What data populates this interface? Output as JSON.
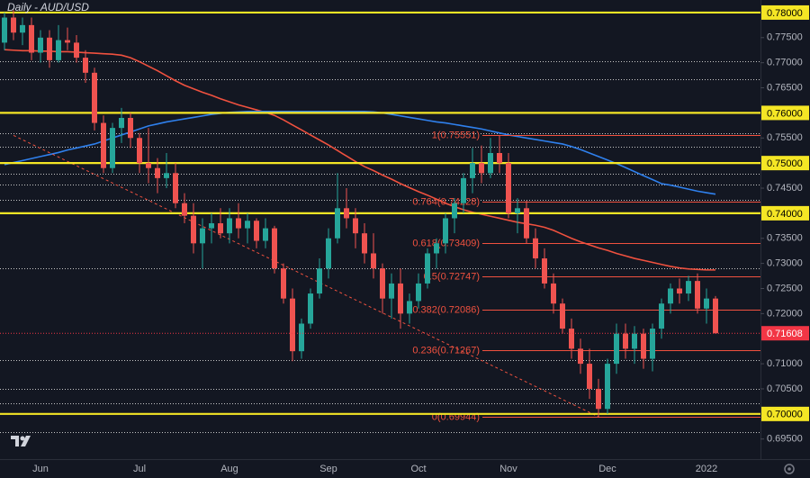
{
  "chart_data": {
    "type": "candlestick",
    "title": "Daily - AUD/USD",
    "up_color": "#26a69a",
    "down_color": "#ef5350",
    "categories": [
      null,
      null,
      null,
      null,
      "Jun",
      null,
      null,
      null,
      null,
      null,
      null,
      null,
      null,
      null,
      null,
      "Jul",
      null,
      null,
      null,
      null,
      null,
      null,
      null,
      null,
      null,
      "Aug",
      null,
      null,
      null,
      null,
      null,
      null,
      null,
      null,
      null,
      null,
      "Sep",
      null,
      null,
      null,
      null,
      null,
      null,
      null,
      null,
      null,
      "Oct",
      null,
      null,
      null,
      null,
      null,
      null,
      null,
      null,
      null,
      "Nov",
      null,
      null,
      null,
      null,
      null,
      null,
      null,
      null,
      null,
      null,
      "Dec",
      null,
      null,
      null,
      null,
      null,
      null,
      null,
      null,
      null,
      null,
      "2022",
      null
    ],
    "ohlc": [
      [
        0.774,
        0.78,
        0.7725,
        0.779
      ],
      [
        0.779,
        0.7805,
        0.7745,
        0.776
      ],
      [
        0.776,
        0.779,
        0.7735,
        0.7775
      ],
      [
        0.7775,
        0.779,
        0.7705,
        0.772
      ],
      [
        0.772,
        0.7765,
        0.77,
        0.775
      ],
      [
        0.775,
        0.7765,
        0.769,
        0.7705
      ],
      [
        0.7705,
        0.7775,
        0.77,
        0.7745
      ],
      [
        0.7745,
        0.777,
        0.7725,
        0.774
      ],
      [
        0.774,
        0.7755,
        0.77,
        0.771
      ],
      [
        0.771,
        0.7725,
        0.766,
        0.768
      ],
      [
        0.768,
        0.769,
        0.7565,
        0.758
      ],
      [
        0.758,
        0.7595,
        0.748,
        0.749
      ],
      [
        0.749,
        0.758,
        0.748,
        0.757
      ],
      [
        0.757,
        0.761,
        0.754,
        0.759
      ],
      [
        0.759,
        0.76,
        0.753,
        0.755
      ],
      [
        0.755,
        0.756,
        0.748,
        0.75
      ],
      [
        0.75,
        0.757,
        0.746,
        0.749
      ],
      [
        0.749,
        0.751,
        0.744,
        0.747
      ],
      [
        0.747,
        0.752,
        0.745,
        0.748
      ],
      [
        0.748,
        0.75,
        0.741,
        0.742
      ],
      [
        0.742,
        0.744,
        0.738,
        0.7395
      ],
      [
        0.7395,
        0.742,
        0.732,
        0.734
      ],
      [
        0.734,
        0.739,
        0.729,
        0.737
      ],
      [
        0.737,
        0.74,
        0.734,
        0.738
      ],
      [
        0.738,
        0.741,
        0.735,
        0.736
      ],
      [
        0.736,
        0.741,
        0.734,
        0.739
      ],
      [
        0.739,
        0.742,
        0.735,
        0.737
      ],
      [
        0.737,
        0.74,
        0.734,
        0.7385
      ],
      [
        0.7385,
        0.739,
        0.733,
        0.7345
      ],
      [
        0.7345,
        0.739,
        0.733,
        0.737
      ],
      [
        0.737,
        0.7375,
        0.728,
        0.729
      ],
      [
        0.729,
        0.73,
        0.722,
        0.723
      ],
      [
        0.723,
        0.725,
        0.7105,
        0.7125
      ],
      [
        0.7125,
        0.719,
        0.711,
        0.718
      ],
      [
        0.718,
        0.725,
        0.717,
        0.724
      ],
      [
        0.724,
        0.731,
        0.723,
        0.729
      ],
      [
        0.729,
        0.737,
        0.727,
        0.735
      ],
      [
        0.735,
        0.748,
        0.734,
        0.741
      ],
      [
        0.741,
        0.745,
        0.737,
        0.739
      ],
      [
        0.739,
        0.741,
        0.733,
        0.736
      ],
      [
        0.736,
        0.738,
        0.73,
        0.732
      ],
      [
        0.732,
        0.736,
        0.727,
        0.729
      ],
      [
        0.729,
        0.73,
        0.72,
        0.723
      ],
      [
        0.723,
        0.728,
        0.719,
        0.726
      ],
      [
        0.726,
        0.729,
        0.717,
        0.72
      ],
      [
        0.72,
        0.724,
        0.718,
        0.7225
      ],
      [
        0.7225,
        0.728,
        0.721,
        0.726
      ],
      [
        0.726,
        0.733,
        0.725,
        0.732
      ],
      [
        0.732,
        0.735,
        0.729,
        0.734
      ],
      [
        0.734,
        0.74,
        0.732,
        0.739
      ],
      [
        0.739,
        0.743,
        0.736,
        0.742
      ],
      [
        0.742,
        0.748,
        0.74,
        0.747
      ],
      [
        0.747,
        0.753,
        0.744,
        0.75
      ],
      [
        0.75,
        0.7535,
        0.746,
        0.748
      ],
      [
        0.748,
        0.755,
        0.747,
        0.752
      ],
      [
        0.752,
        0.7555,
        0.748,
        0.75
      ],
      [
        0.75,
        0.752,
        0.739,
        0.74
      ],
      [
        0.74,
        0.743,
        0.736,
        0.741
      ],
      [
        0.741,
        0.7425,
        0.734,
        0.735
      ],
      [
        0.735,
        0.737,
        0.729,
        0.731
      ],
      [
        0.731,
        0.733,
        0.725,
        0.726
      ],
      [
        0.726,
        0.728,
        0.72,
        0.722
      ],
      [
        0.722,
        0.723,
        0.716,
        0.717
      ],
      [
        0.717,
        0.719,
        0.711,
        0.713
      ],
      [
        0.713,
        0.715,
        0.708,
        0.71
      ],
      [
        0.71,
        0.713,
        0.703,
        0.705
      ],
      [
        0.705,
        0.707,
        0.6994,
        0.701
      ],
      [
        0.701,
        0.711,
        0.7,
        0.71
      ],
      [
        0.71,
        0.718,
        0.708,
        0.716
      ],
      [
        0.716,
        0.718,
        0.711,
        0.713
      ],
      [
        0.713,
        0.7175,
        0.71,
        0.716
      ],
      [
        0.716,
        0.717,
        0.709,
        0.711
      ],
      [
        0.711,
        0.718,
        0.7085,
        0.717
      ],
      [
        0.717,
        0.723,
        0.715,
        0.722
      ],
      [
        0.722,
        0.726,
        0.72,
        0.725
      ],
      [
        0.725,
        0.727,
        0.722,
        0.724
      ],
      [
        0.724,
        0.7275,
        0.7225,
        0.7265
      ],
      [
        0.7265,
        0.728,
        0.72,
        0.721
      ],
      [
        0.721,
        0.725,
        0.718,
        0.723
      ],
      [
        0.723,
        0.7235,
        0.716,
        0.71608
      ]
    ],
    "series": [
      {
        "color": "#f0513f",
        "values": [
          0.7726,
          0.7725,
          0.7724,
          0.7724,
          0.7723,
          0.7723,
          0.7722,
          0.7722,
          0.7721,
          0.772,
          0.7719,
          0.7718,
          0.7717,
          0.7715,
          0.771,
          0.7702,
          0.7693,
          0.7684,
          0.7674,
          0.7664,
          0.7655,
          0.7648,
          0.7641,
          0.7635,
          0.7628,
          0.7622,
          0.7616,
          0.7611,
          0.7606,
          0.7601,
          0.7595,
          0.7586,
          0.7576,
          0.7566,
          0.7556,
          0.7546,
          0.7536,
          0.7525,
          0.7514,
          0.7503,
          0.7493,
          0.7485,
          0.7476,
          0.7468,
          0.7459,
          0.7451,
          0.7443,
          0.7436,
          0.7428,
          0.742,
          0.7413,
          0.7407,
          0.7402,
          0.7398,
          0.7394,
          0.739,
          0.7386,
          0.7382,
          0.7379,
          0.7376,
          0.7372,
          0.7366,
          0.7358,
          0.735,
          0.7343,
          0.7337,
          0.7331,
          0.7326,
          0.732,
          0.7315,
          0.731,
          0.7306,
          0.7302,
          0.7298,
          0.7294,
          0.7291,
          0.7289,
          0.7288,
          0.7287,
          0.7287
        ]
      },
      {
        "color": "#2f80ed",
        "values": [
          0.7497,
          0.7501,
          0.7505,
          0.7509,
          0.7513,
          0.7517,
          0.7521,
          0.7526,
          0.753,
          0.7534,
          0.7538,
          0.7544,
          0.755,
          0.7556,
          0.7562,
          0.7568,
          0.7574,
          0.7578,
          0.7582,
          0.7585,
          0.7588,
          0.7591,
          0.7594,
          0.7597,
          0.7599,
          0.7601,
          0.7602,
          0.7603,
          0.7603,
          0.7603,
          0.7603,
          0.7603,
          0.7603,
          0.7603,
          0.7603,
          0.7603,
          0.7603,
          0.7603,
          0.7603,
          0.7603,
          0.7603,
          0.7602,
          0.76,
          0.7597,
          0.7594,
          0.7591,
          0.7588,
          0.7585,
          0.7582,
          0.758,
          0.7577,
          0.7574,
          0.7571,
          0.7568,
          0.7564,
          0.756,
          0.7556,
          0.7553,
          0.755,
          0.7547,
          0.7544,
          0.7541,
          0.7538,
          0.7533,
          0.7527,
          0.752,
          0.7513,
          0.7506,
          0.7499,
          0.7491,
          0.7483,
          0.7475,
          0.7467,
          0.7459,
          0.7456,
          0.7452,
          0.7448,
          0.7444,
          0.7441,
          0.7438
        ]
      }
    ],
    "ylim": [
      0.691,
      0.7825
    ],
    "yticks": [
      {
        "value": 0.775,
        "label": "0.77500"
      },
      {
        "value": 0.77,
        "label": "0.77000"
      },
      {
        "value": 0.765,
        "label": "0.76500"
      },
      {
        "value": 0.755,
        "label": "0.75500"
      },
      {
        "value": 0.745,
        "label": "0.74500"
      },
      {
        "value": 0.735,
        "label": "0.73500"
      },
      {
        "value": 0.73,
        "label": "0.73000"
      },
      {
        "value": 0.725,
        "label": "0.72500"
      },
      {
        "value": 0.72,
        "label": "0.72000"
      },
      {
        "value": 0.71,
        "label": "0.71000"
      },
      {
        "value": 0.705,
        "label": "0.70500"
      },
      {
        "value": 0.695,
        "label": "0.69500"
      }
    ],
    "key_levels_color": "#f5e625",
    "key_levels": [
      {
        "value": 0.78,
        "label": "0.78000"
      },
      {
        "value": 0.76,
        "label": "0.76000"
      },
      {
        "value": 0.75,
        "label": "0.75000"
      },
      {
        "value": 0.74,
        "label": "0.74000"
      },
      {
        "value": 0.7,
        "label": "0.70000"
      }
    ],
    "dotted_levels": [
      0.7703,
      0.7667,
      0.756,
      0.7533,
      0.7479,
      0.7457,
      0.7427,
      0.7291,
      0.7108,
      0.705,
      0.7022,
      0.6964
    ],
    "last_price": {
      "value": 0.71608,
      "label": "0.71608",
      "color": "#f23645"
    },
    "fib_color": "#f0513f",
    "fib_levels": [
      {
        "label": "1(0.75551)",
        "value": 0.75551
      },
      {
        "label": "0.764(0.74228)",
        "value": 0.74228
      },
      {
        "label": "0.618(0.73409)",
        "value": 0.73409
      },
      {
        "label": "0.5(0.72747)",
        "value": 0.72747
      },
      {
        "label": "0.382(0.72086)",
        "value": 0.72086
      },
      {
        "label": "0.236(0.71267)",
        "value": 0.71267
      },
      {
        "label": "0(0.69944)",
        "value": 0.69944
      }
    ]
  }
}
